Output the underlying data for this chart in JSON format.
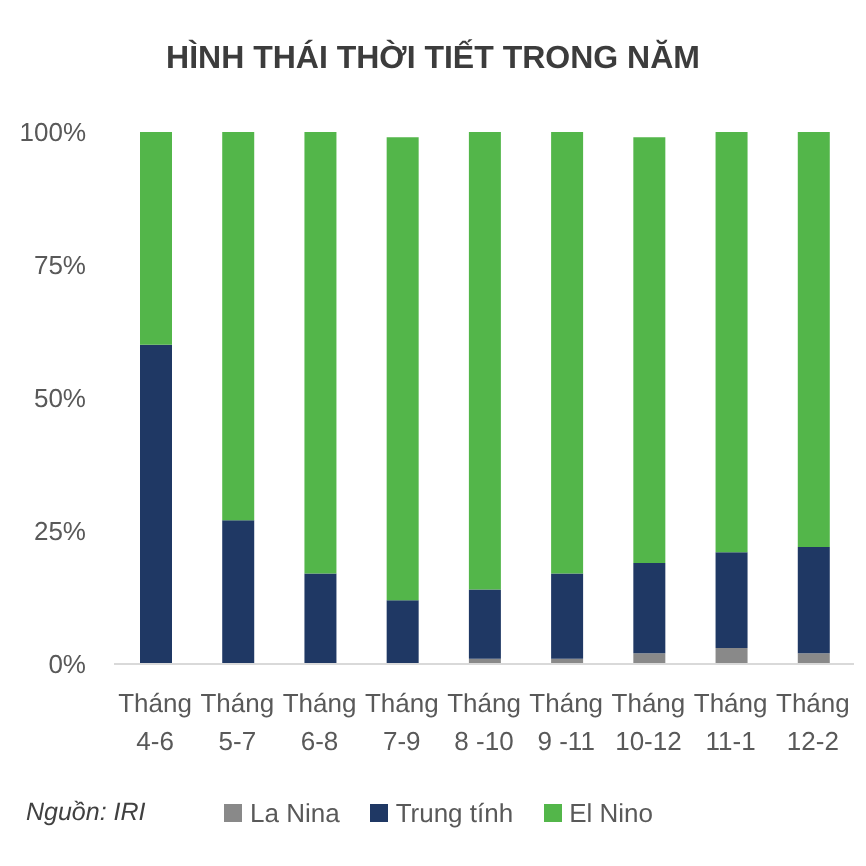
{
  "chart_data": {
    "type": "bar",
    "title": "HÌNH THÁI THỜI TIẾT TRONG NĂM",
    "categories": [
      "Tháng 4-6",
      "Tháng 5-7",
      "Tháng 6-8",
      "Tháng 7-9",
      "Tháng 8 -10",
      "Tháng 9 -11",
      "Tháng 10-12",
      "Tháng 11-1",
      "Tháng 12-2"
    ],
    "series": [
      {
        "name": "La Nina",
        "color": "#898989",
        "values": [
          0,
          0,
          0,
          0,
          1,
          1,
          2,
          3,
          2
        ]
      },
      {
        "name": "Trung tính",
        "color": "#1f3864",
        "values": [
          60,
          27,
          17,
          12,
          13,
          16,
          17,
          18,
          20
        ]
      },
      {
        "name": "El Nino",
        "color": "#53b64a",
        "values": [
          40,
          73,
          83,
          87,
          86,
          83,
          80,
          79,
          78
        ]
      }
    ],
    "stacked": true,
    "ylim": [
      0,
      100
    ],
    "yticks": [
      {
        "value": 0,
        "label": "0%"
      },
      {
        "value": 25,
        "label": "25%"
      },
      {
        "value": 50,
        "label": "50%"
      },
      {
        "value": 75,
        "label": "75%"
      },
      {
        "value": 100,
        "label": "100%"
      }
    ],
    "legend": "bottom",
    "annotations": [
      "Nguồn: IRI"
    ]
  }
}
